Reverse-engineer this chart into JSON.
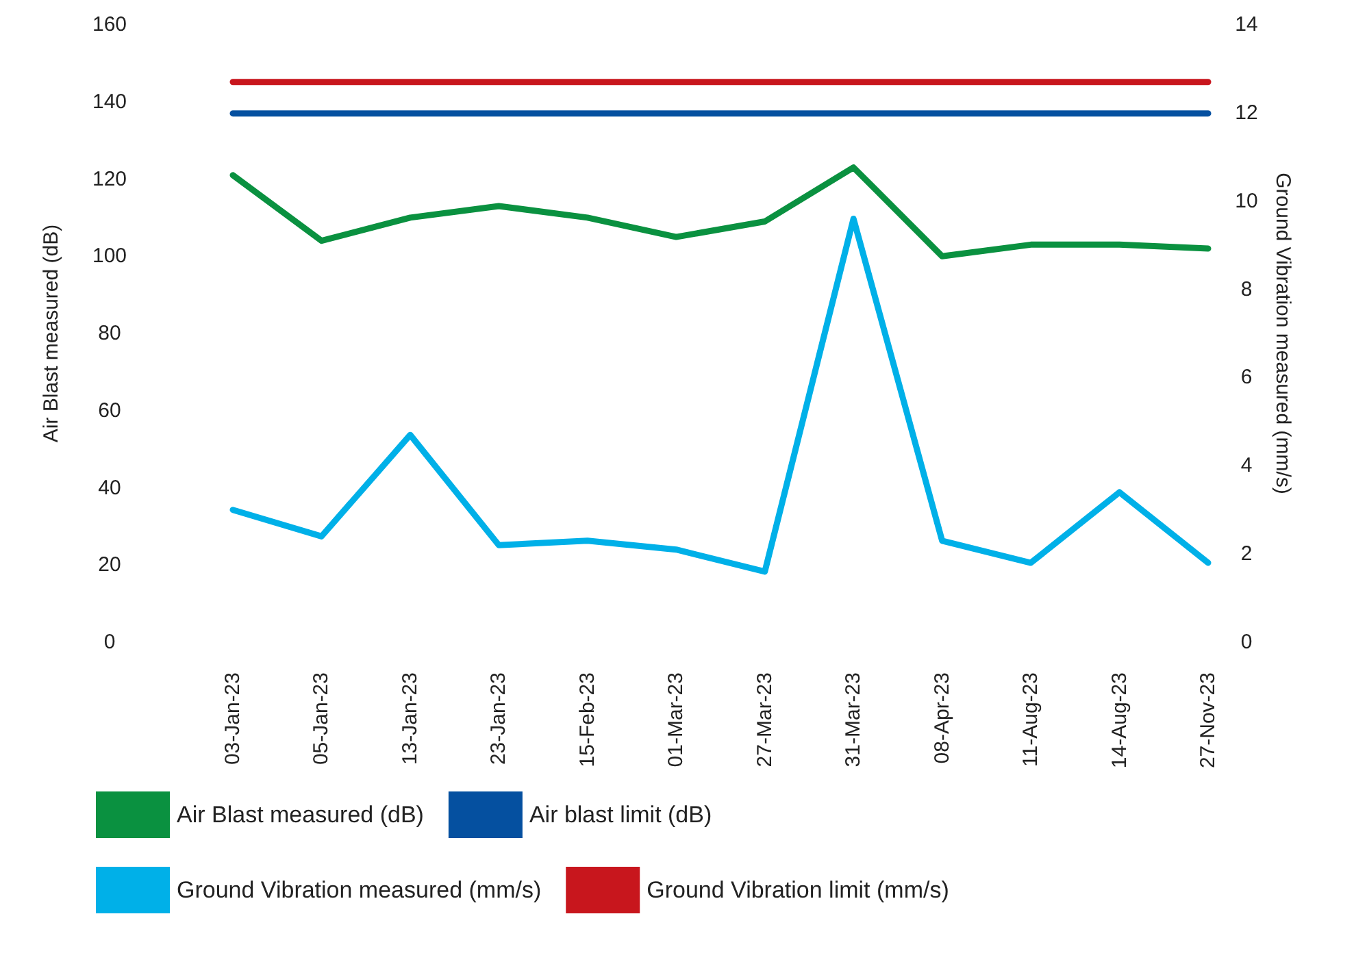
{
  "chart_data": {
    "type": "line",
    "ylabel": "Air Blast measured (dB)",
    "y2label": "Ground Vibration measured (mm/s)",
    "categories": [
      "03-Jan-23",
      "05-Jan-23",
      "13-Jan-23",
      "23-Jan-23",
      "15-Feb-23",
      "01-Mar-23",
      "27-Mar-23",
      "31-Mar-23",
      "08-Apr-23",
      "11-Aug-23",
      "14-Aug-23",
      "27-Nov-23"
    ],
    "series": [
      {
        "name": "Air Blast measured (dB)",
        "color": "#0a9140",
        "values": [
          121,
          104,
          110,
          113,
          110,
          105,
          109,
          123,
          100,
          103,
          103,
          102
        ]
      },
      {
        "name": "Air blast limit (dB)",
        "color": "#0550a0",
        "values": [
          137,
          137,
          137,
          137,
          137,
          137,
          137,
          137,
          137,
          137,
          137,
          137
        ]
      },
      {
        "name": "Ground Vibration measured (mm/s)",
        "color": "#00b0e8",
        "axis": "y2",
        "values": [
          3.0,
          2.4,
          4.7,
          2.2,
          2.3,
          2.1,
          1.6,
          9.6,
          2.3,
          1.8,
          3.4,
          1.8
        ]
      },
      {
        "name": "Ground Vibration limit (mm/s)",
        "color": "#c8161d",
        "axis": "y2",
        "values": [
          12.7,
          12.7,
          12.7,
          12.7,
          12.7,
          12.7,
          12.7,
          12.7,
          12.7,
          12.7,
          12.7,
          12.7
        ]
      }
    ],
    "ylim": [
      0,
      160
    ],
    "yticks": [
      0,
      20,
      40,
      60,
      80,
      100,
      120,
      140,
      160
    ],
    "y2lim": [
      0,
      14
    ],
    "y2ticks": [
      0,
      2,
      4,
      6,
      8,
      10,
      12,
      14
    ],
    "grid": false,
    "legend": "bottom",
    "marker": "none",
    "line_style": "solid"
  }
}
